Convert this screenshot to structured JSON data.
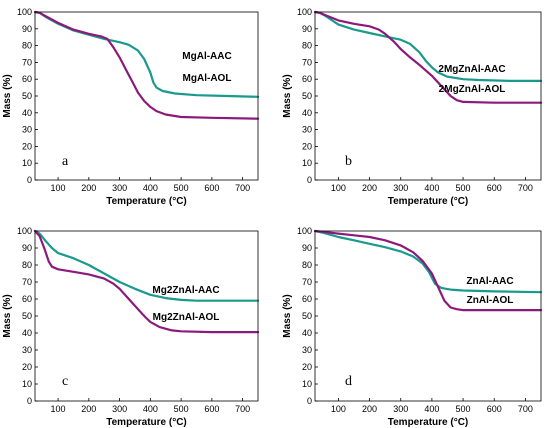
{
  "chart_data": [
    {
      "type": "line",
      "panel_label": "a",
      "xlabel": "Temperature (°C)",
      "ylabel": "Mass (%)",
      "xlim": [
        25,
        750
      ],
      "ylim": [
        0,
        100
      ],
      "xticks": [
        100,
        200,
        300,
        400,
        500,
        600,
        700
      ],
      "yticks": [
        0,
        10,
        20,
        30,
        40,
        50,
        60,
        70,
        80,
        90,
        100
      ],
      "series": [
        {
          "name": "MgAl-AAC",
          "color": "#1a9a8c",
          "x": [
            25,
            40,
            60,
            100,
            150,
            200,
            250,
            300,
            330,
            360,
            380,
            400,
            410,
            420,
            440,
            480,
            550,
            650,
            750
          ],
          "y": [
            100,
            99.5,
            97,
            93,
            89,
            86.5,
            84,
            82,
            80.5,
            77,
            72,
            64,
            58,
            55,
            53,
            51.5,
            50.5,
            50,
            49.5
          ]
        },
        {
          "name": "MgAl-AOL",
          "color": "#8c1a7a",
          "x": [
            25,
            40,
            60,
            100,
            150,
            200,
            240,
            260,
            280,
            300,
            320,
            340,
            360,
            380,
            400,
            420,
            450,
            500,
            600,
            750
          ],
          "y": [
            100,
            99.5,
            97.5,
            93.5,
            89.5,
            87,
            85.5,
            84,
            79,
            73,
            66,
            59,
            52,
            47,
            43.5,
            41,
            39,
            37.5,
            37,
            36.5
          ]
        }
      ]
    },
    {
      "type": "line",
      "panel_label": "b",
      "xlabel": "Temperature (°C)",
      "ylabel": "Mass (%)",
      "xlim": [
        25,
        750
      ],
      "ylim": [
        0,
        100
      ],
      "xticks": [
        100,
        200,
        300,
        400,
        500,
        600,
        700
      ],
      "yticks": [
        0,
        10,
        20,
        30,
        40,
        50,
        60,
        70,
        80,
        90,
        100
      ],
      "series": [
        {
          "name": "2MgZnAl-AAC",
          "color": "#1a9a8c",
          "x": [
            25,
            40,
            60,
            80,
            100,
            150,
            200,
            250,
            300,
            330,
            360,
            380,
            400,
            420,
            450,
            500,
            550,
            650,
            750
          ],
          "y": [
            100,
            99.5,
            97.5,
            95,
            92.5,
            89.5,
            87.5,
            85.5,
            83.5,
            81,
            76,
            71,
            67,
            64,
            61.5,
            60,
            59.5,
            59,
            59
          ]
        },
        {
          "name": "2MgZnAl-AOL",
          "color": "#8c1a7a",
          "x": [
            25,
            40,
            60,
            100,
            150,
            200,
            230,
            250,
            280,
            300,
            330,
            360,
            400,
            430,
            460,
            480,
            500,
            600,
            750
          ],
          "y": [
            100,
            99.5,
            98,
            95,
            93,
            91.5,
            89.5,
            87,
            82,
            78,
            73,
            68.5,
            62,
            56,
            50,
            47.5,
            46.5,
            46,
            46
          ]
        }
      ]
    },
    {
      "type": "line",
      "panel_label": "c",
      "xlabel": "Temperature (°C)",
      "ylabel": "Mass (%)",
      "xlim": [
        25,
        750
      ],
      "ylim": [
        0,
        100
      ],
      "xticks": [
        100,
        200,
        300,
        400,
        500,
        600,
        700
      ],
      "yticks": [
        0,
        10,
        20,
        30,
        40,
        50,
        60,
        70,
        80,
        90,
        100
      ],
      "series": [
        {
          "name": "Mg2ZnAl-AAC",
          "color": "#1a9a8c",
          "x": [
            25,
            40,
            60,
            80,
            100,
            150,
            200,
            250,
            300,
            350,
            400,
            450,
            500,
            550,
            650,
            750
          ],
          "y": [
            100,
            98.5,
            94,
            90,
            87,
            84,
            80,
            75,
            70,
            66,
            62.5,
            60.5,
            59.5,
            59,
            59,
            59
          ]
        },
        {
          "name": "Mg2ZnAl-AOL",
          "color": "#8c1a7a",
          "x": [
            25,
            40,
            55,
            70,
            80,
            100,
            150,
            200,
            250,
            280,
            300,
            330,
            360,
            380,
            400,
            430,
            470,
            500,
            600,
            750
          ],
          "y": [
            100,
            97,
            90,
            82,
            79,
            77.5,
            76,
            74.5,
            72,
            69,
            66,
            60,
            54,
            50,
            46.5,
            43.5,
            41.5,
            41,
            40.5,
            40.5
          ]
        }
      ]
    },
    {
      "type": "line",
      "panel_label": "d",
      "xlabel": "Temperature (°C)",
      "ylabel": "Mass (%)",
      "xlim": [
        25,
        750
      ],
      "ylim": [
        0,
        100
      ],
      "xticks": [
        100,
        200,
        300,
        400,
        500,
        600,
        700
      ],
      "yticks": [
        0,
        10,
        20,
        30,
        40,
        50,
        60,
        70,
        80,
        90,
        100
      ],
      "series": [
        {
          "name": "ZnAl-AAC",
          "color": "#1a9a8c",
          "x": [
            25,
            50,
            100,
            150,
            200,
            250,
            300,
            340,
            370,
            390,
            410,
            430,
            460,
            500,
            600,
            750
          ],
          "y": [
            100,
            99,
            96.5,
            94.5,
            92.5,
            90.5,
            88,
            85,
            81,
            76,
            69,
            66.5,
            65.5,
            65,
            64.5,
            64
          ]
        },
        {
          "name": "ZnAl-AOL",
          "color": "#8c1a7a",
          "x": [
            25,
            50,
            100,
            150,
            200,
            250,
            300,
            340,
            370,
            400,
            420,
            440,
            460,
            480,
            500,
            600,
            750
          ],
          "y": [
            100,
            99.5,
            98.5,
            97.5,
            96.5,
            94.5,
            91.5,
            87.5,
            82.5,
            75,
            67,
            59,
            55,
            54,
            53.5,
            53.5,
            53.5
          ]
        }
      ]
    }
  ]
}
